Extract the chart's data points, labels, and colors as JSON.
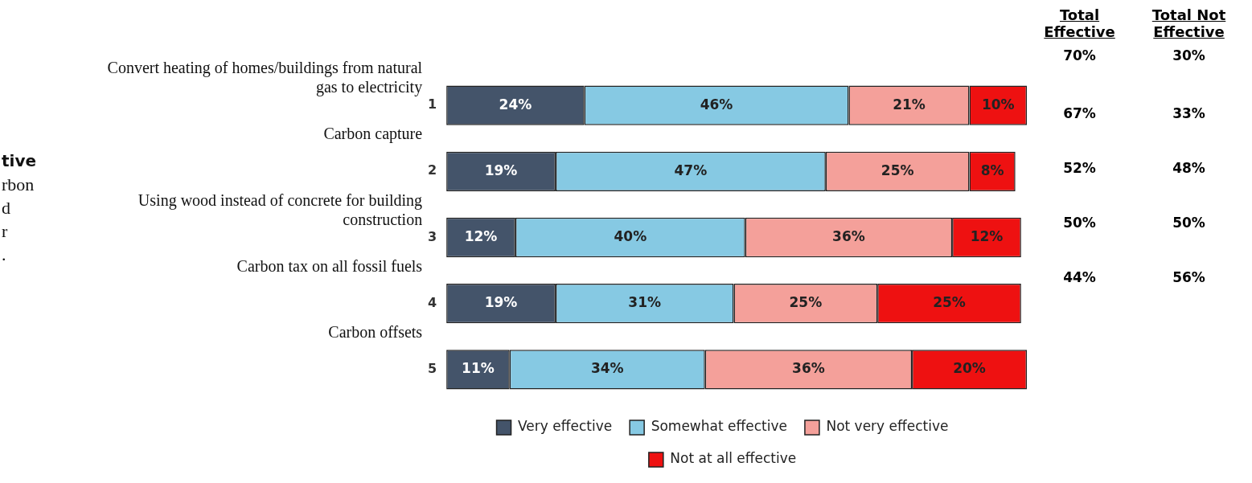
{
  "chart_data": [
    {
      "type": "bar",
      "orientation": "horizontal",
      "stacked": true,
      "categories": [
        "1",
        "2",
        "3",
        "4",
        "5"
      ],
      "series": [
        {
          "name": "Very effective",
          "color": "#44546a",
          "values": [
            24,
            19,
            12,
            19,
            11
          ],
          "value_labels": [
            "24%",
            "19%",
            "12%",
            "19%",
            "11%"
          ]
        },
        {
          "name": "Somewhat effective",
          "color": "#86c9e3",
          "values": [
            46,
            47,
            40,
            31,
            34
          ],
          "value_labels": [
            "46%",
            "47%",
            "40%",
            "31%",
            "34%"
          ]
        },
        {
          "name": "Not very effective",
          "color": "#f4a09a",
          "values": [
            21,
            25,
            36,
            25,
            36
          ],
          "value_labels": [
            "21%",
            "25%",
            "36%",
            "25%",
            "36%"
          ]
        },
        {
          "name": "Not at all effective",
          "color": "#ee1111",
          "values": [
            10,
            8,
            12,
            25,
            20
          ],
          "value_labels": [
            "10%",
            "8%",
            "12%",
            "25%",
            "20%"
          ]
        }
      ],
      "legend": "bottom",
      "grid": false,
      "tick_labels": "y",
      "annotations": [
        "Convert heating of homes/buildings from natural gas to electricity",
        "Carbon capture",
        "Using wood instead of concrete for building construction",
        "Carbon tax on all fossil fuels",
        "Carbon offsets",
        "tive",
        "rbon",
        "d",
        "r",
        "."
      ]
    },
    {
      "type": "other",
      "categories": [
        "Total Effective",
        "Total Not Effective"
      ],
      "series": [
        {
          "values": [
            70,
            30
          ],
          "value_labels": [
            "70%",
            "30%"
          ]
        },
        {
          "values": [
            67,
            33
          ],
          "value_labels": [
            "67%",
            "33%"
          ]
        },
        {
          "values": [
            52,
            48
          ],
          "value_labels": [
            "52%",
            "48%"
          ]
        },
        {
          "values": [
            50,
            50
          ],
          "value_labels": [
            "50%",
            "50%"
          ]
        },
        {
          "values": [
            44,
            56
          ],
          "value_labels": [
            "44%",
            "56%"
          ]
        }
      ]
    }
  ]
}
